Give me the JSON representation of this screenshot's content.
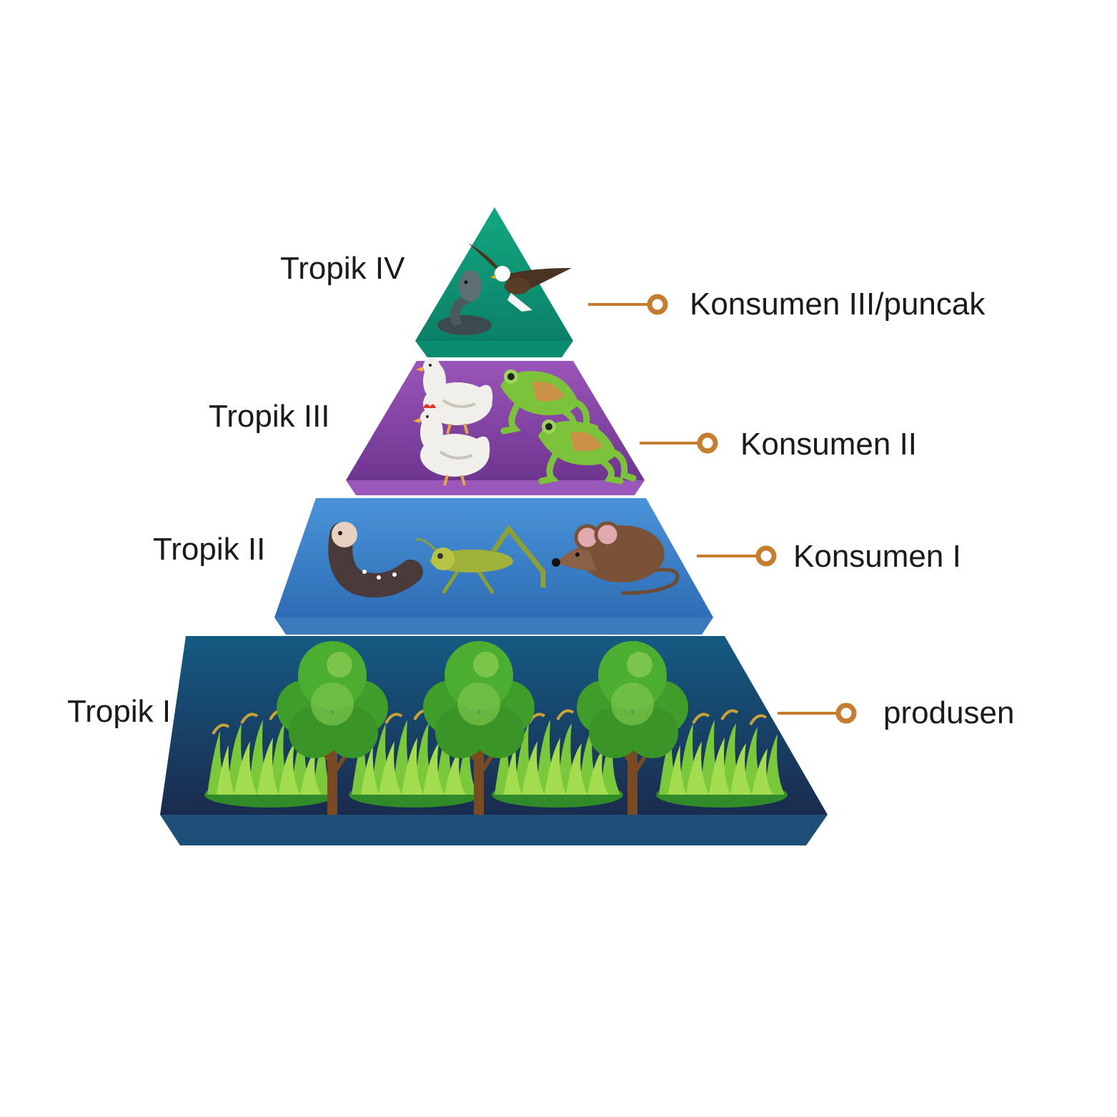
{
  "colors": {
    "level_4": "#0f9a7a",
    "level_3": "#8a4aa6",
    "level_2": "#3c86cf",
    "level_1": "#16466b",
    "connector": "#c57d2f"
  },
  "levels": [
    {
      "id": 4,
      "tropik_label": "Tropik IV",
      "role_label": "Konsumen III/puncak",
      "organisms": [
        "snake-icon",
        "eagle-icon"
      ]
    },
    {
      "id": 3,
      "tropik_label": "Tropik III",
      "role_label": "Konsumen II",
      "organisms": [
        "chicken-icon",
        "chicken-icon",
        "frog-icon",
        "frog-icon"
      ]
    },
    {
      "id": 2,
      "tropik_label": "Tropik II",
      "role_label": "Konsumen I",
      "organisms": [
        "caterpillar-icon",
        "grasshopper-icon",
        "mouse-icon"
      ]
    },
    {
      "id": 1,
      "tropik_label": "Tropik I",
      "role_label": "produsen",
      "organisms": [
        "tree-icon",
        "tree-icon",
        "tree-icon",
        "grass-icon",
        "grass-icon",
        "grass-icon",
        "grass-icon"
      ]
    }
  ]
}
